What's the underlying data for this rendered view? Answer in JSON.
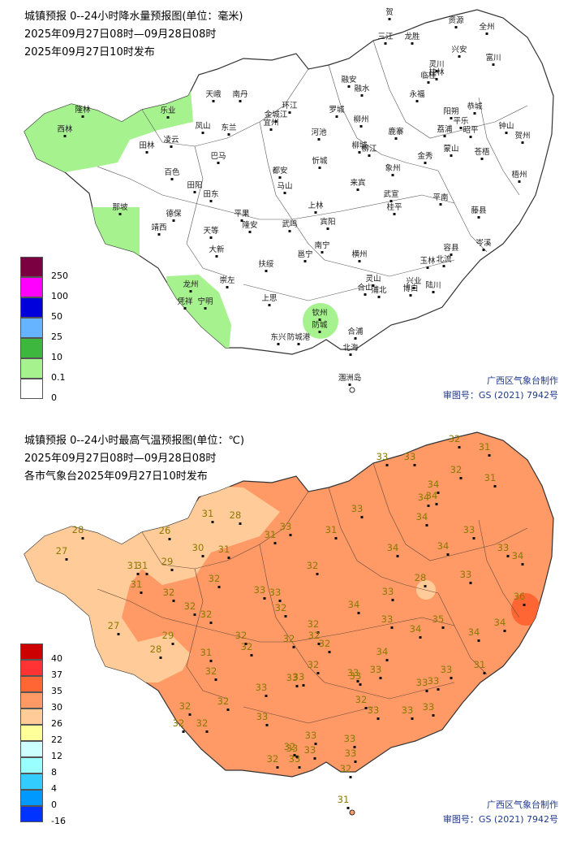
{
  "rain": {
    "title": "城镇预报 0--24小时降水量预报图(单位：毫米)",
    "period": "2025年09月27日08时—09月28日08时",
    "issued": "2025年09月27日10时发布",
    "legend": [
      {
        "label": "250",
        "color": "#7a0041"
      },
      {
        "label": "100",
        "color": "#ff00ff"
      },
      {
        "label": "50",
        "color": "#0000dd"
      },
      {
        "label": "25",
        "color": "#66b3ff"
      },
      {
        "label": "10",
        "color": "#3db73d"
      },
      {
        "label": "0.1",
        "color": "#a6f28f"
      },
      {
        "label": "0",
        "color": "#ffffff"
      }
    ],
    "credit_line1": "广西区气象台制作",
    "credit_line2": "审图号：GS (2021) 7942号",
    "cities": [
      "贺",
      "全州",
      "三江",
      "龙胜",
      "资源",
      "兴安",
      "灵川",
      "恭城",
      "临桂",
      "桂林",
      "富川",
      "钟山",
      "贺州",
      "阳朔",
      "平乐",
      "荔浦",
      "昭平",
      "蒙山",
      "苍梧",
      "梧州",
      "藤县",
      "岑溪",
      "平南",
      "桂平",
      "容县",
      "北流",
      "玉林",
      "陆川",
      "博白",
      "浦北",
      "灵山",
      "钦州",
      "合浦",
      "北海",
      "防城",
      "东兴",
      "防城港",
      "上思",
      "扶绥",
      "崇左",
      "宁明",
      "凭祥",
      "龙州",
      "大新",
      "天等",
      "靖西",
      "那坡",
      "德保",
      "田阳",
      "田东",
      "百色",
      "田林",
      "西林",
      "隆林",
      "乐业",
      "凌云",
      "凤山",
      "东兰",
      "天峨",
      "南丹",
      "巴马",
      "都安",
      "马山",
      "平果",
      "隆安",
      "武鸣",
      "南宁",
      "邕宁",
      "横州",
      "宾阳",
      "上林",
      "忻城",
      "来宾",
      "象州",
      "武宣",
      "金秀",
      "鹿寨",
      "柳州",
      "柳江",
      "柳城",
      "融安",
      "融水",
      "罗城",
      "环江",
      "宜州",
      "河池",
      "金城江",
      "永福",
      "合山",
      "兴业",
      "涠洲岛"
    ]
  },
  "temp": {
    "title": "城镇预报 0--24小时最高气温预报图(单位：℃)",
    "period": "2025年09月27日08时—09月28日08时",
    "issued": "各市气象台2025年09月27日10时发布",
    "legend": [
      {
        "label": "40",
        "color": "#cc0000"
      },
      {
        "label": "37",
        "color": "#ff3333"
      },
      {
        "label": "35",
        "color": "#ff6633"
      },
      {
        "label": "30",
        "color": "#ff9966"
      },
      {
        "label": "26",
        "color": "#ffcc99"
      },
      {
        "label": "22",
        "color": "#ffff99"
      },
      {
        "label": "12",
        "color": "#ccffff"
      },
      {
        "label": "8",
        "color": "#99ffff"
      },
      {
        "label": "4",
        "color": "#33ccff"
      },
      {
        "label": "0",
        "color": "#0099ff"
      },
      {
        "label": "-16",
        "color": "#0033ff"
      }
    ],
    "credit_line1": "广西区气象台制作",
    "credit_line2": "审图号：GS (2021) 7942号",
    "values": [
      "32",
      "31",
      "33",
      "33",
      "32",
      "31",
      "34",
      "34",
      "34",
      "33",
      "34",
      "31",
      "28",
      "31",
      "31",
      "33",
      "28",
      "26",
      "27",
      "30",
      "31",
      "31",
      "31",
      "29",
      "31",
      "32",
      "32",
      "32",
      "32",
      "33",
      "34",
      "33",
      "34",
      "34",
      "33",
      "33",
      "34",
      "32",
      "32",
      "32",
      "32",
      "28",
      "33",
      "36",
      "33",
      "32",
      "32",
      "33",
      "33",
      "33",
      "34",
      "35",
      "34",
      "34",
      "27",
      "29",
      "28",
      "31",
      "32",
      "32",
      "32",
      "32",
      "32",
      "33",
      "33",
      "34",
      "32",
      "33",
      "33",
      "32",
      "33",
      "33",
      "33",
      "31",
      "32",
      "33",
      "33",
      "33",
      "32",
      "33",
      "33",
      "32",
      "33",
      "33",
      "33",
      "33",
      "33",
      "32",
      "32",
      "31"
    ]
  }
}
